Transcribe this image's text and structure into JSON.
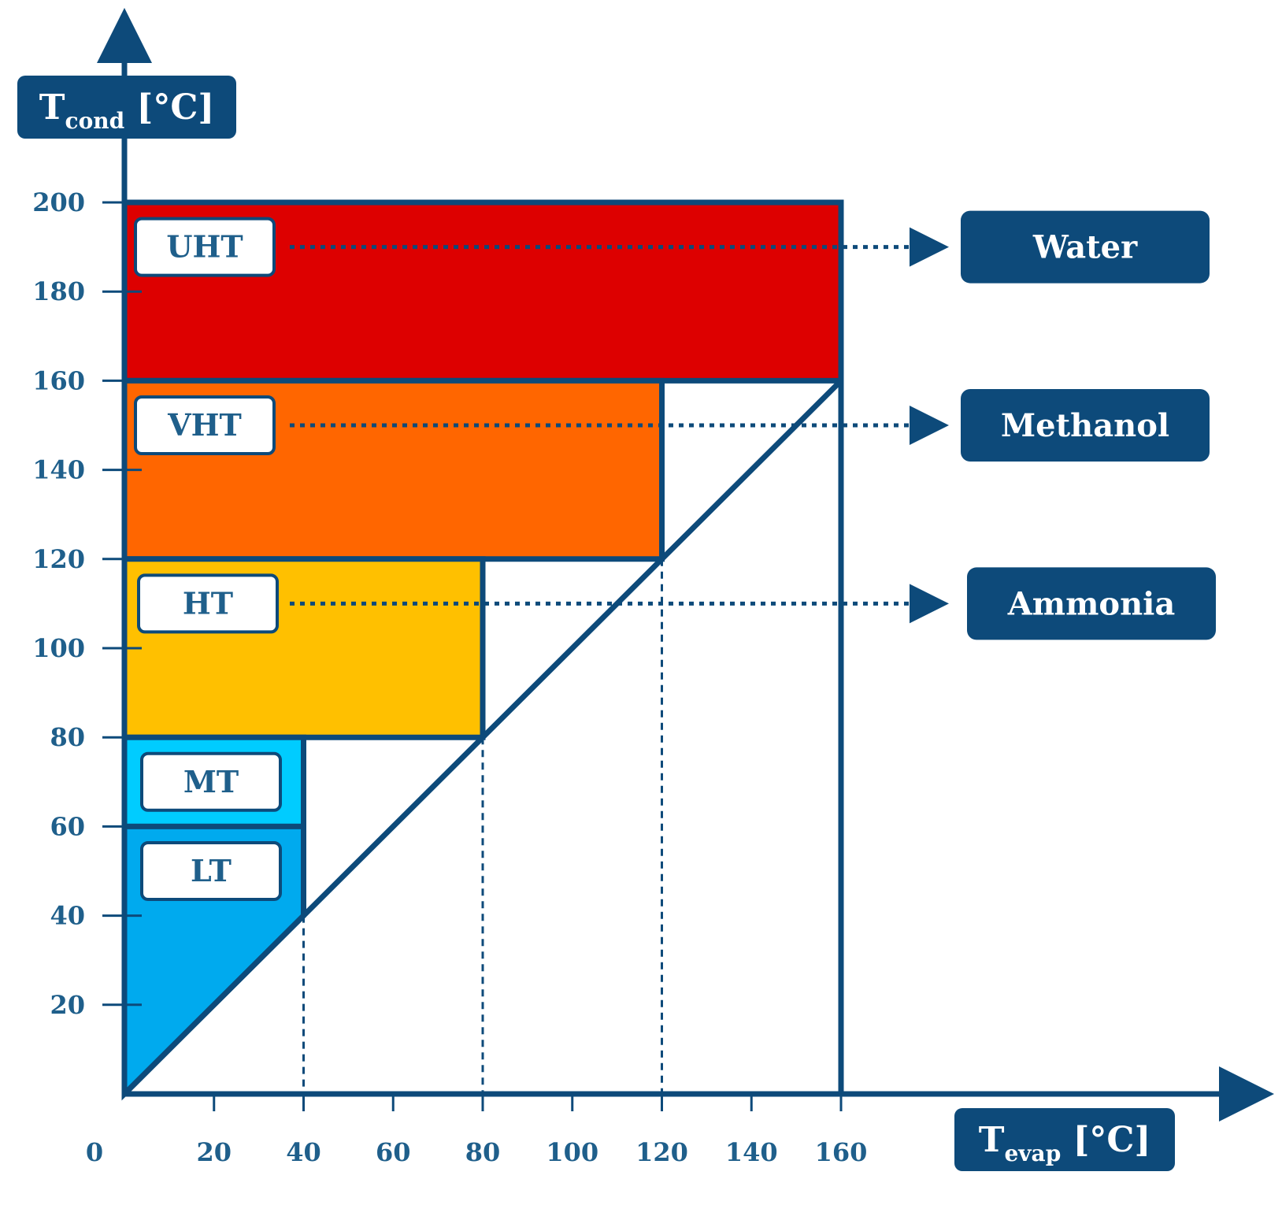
{
  "colors": {
    "axis": "#0d4a7a",
    "label_text": "#1f5f8b",
    "LT": "#00aaee",
    "MT": "#00ccff",
    "HT": "#ffc000",
    "VHT": "#ff6600",
    "UHT": "#dd0000"
  },
  "chart_data": {
    "type": "area",
    "xlabel": {
      "main": "T",
      "sub": "evap",
      "unit": " [°C]"
    },
    "ylabel": {
      "main": "T",
      "sub": "cond",
      "unit": " [°C]"
    },
    "xlim": [
      0,
      160
    ],
    "ylim": [
      0,
      200
    ],
    "x_ticks": [
      "0",
      "20",
      "40",
      "60",
      "80",
      "100",
      "120",
      "140",
      "160"
    ],
    "y_ticks": [
      "20",
      "40",
      "60",
      "80",
      "100",
      "120",
      "140",
      "160",
      "180",
      "200"
    ],
    "regions": [
      {
        "name": "UHT",
        "x_max": 160,
        "y_min": 160,
        "y_max": 200,
        "color_key": "UHT"
      },
      {
        "name": "VHT",
        "x_max": 120,
        "y_min": 120,
        "y_max": 160,
        "color_key": "VHT"
      },
      {
        "name": "HT",
        "x_max": 80,
        "y_min": 80,
        "y_max": 120,
        "color_key": "HT"
      },
      {
        "name": "MT",
        "x_max": 40,
        "y_min": 60,
        "y_max": 80,
        "color_key": "MT"
      },
      {
        "name": "LT",
        "x_max": 40,
        "y_min": 0,
        "y_max": 60,
        "color_key": "LT"
      }
    ],
    "diagonal": {
      "from": [
        0,
        0
      ],
      "to": [
        160,
        160
      ]
    },
    "fluids": [
      {
        "name": "Water",
        "region": "UHT",
        "y": 190
      },
      {
        "name": "Methanol",
        "region": "VHT",
        "y": 150
      },
      {
        "name": "Ammonia",
        "region": "HT",
        "y": 110
      }
    ],
    "dashed_x": [
      40,
      80,
      120
    ]
  }
}
